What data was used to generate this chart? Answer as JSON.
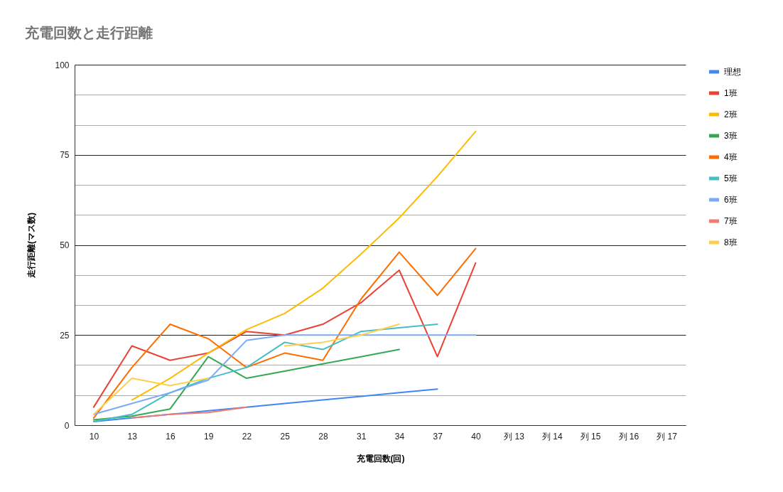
{
  "chart_data": {
    "type": "line",
    "title": "充電回数と走行距離",
    "xlabel": "充電回数(回)",
    "ylabel": "走行距離(マス数)",
    "categories": [
      "10",
      "13",
      "16",
      "19",
      "22",
      "25",
      "28",
      "31",
      "34",
      "37",
      "40",
      "列 13",
      "列 14",
      "列 15",
      "列 16",
      "列 17"
    ],
    "ylim": [
      0,
      100
    ],
    "yticks": [
      0,
      {
        "value": 8.33,
        "label": null
      },
      {
        "value": 16.67,
        "label": null
      },
      25,
      {
        "value": 33.33,
        "label": null
      },
      {
        "value": 41.67,
        "label": null
      },
      50,
      {
        "value": 58.33,
        "label": null
      },
      {
        "value": 66.67,
        "label": null
      },
      75,
      {
        "value": 83.33,
        "label": null
      },
      {
        "value": 91.67,
        "label": null
      },
      100
    ],
    "grid": "y",
    "legend": "right",
    "line_style": "solid",
    "series": [
      {
        "name": "理想",
        "color": "#4285f4",
        "values": [
          1,
          2,
          3,
          4,
          5,
          6,
          7,
          8,
          9,
          10,
          null,
          null,
          null,
          null,
          null,
          null
        ]
      },
      {
        "name": "1班",
        "color": "#ea4335",
        "values": [
          5,
          22,
          18,
          20,
          26,
          25,
          28,
          34,
          43,
          19,
          45,
          null,
          null,
          null,
          null,
          null
        ]
      },
      {
        "name": "2班",
        "color": "#fbbc04",
        "values": [
          null,
          7,
          13,
          20,
          26.5,
          31,
          38,
          47.5,
          57.5,
          69,
          81.5,
          null,
          null,
          null,
          null,
          null
        ]
      },
      {
        "name": "3班",
        "color": "#34a853",
        "values": [
          1.5,
          2.5,
          4.5,
          19,
          13,
          15,
          17,
          19,
          21,
          null,
          null,
          null,
          null,
          null,
          null,
          null
        ]
      },
      {
        "name": "4班",
        "color": "#ff6d01",
        "values": [
          2,
          16,
          28,
          24,
          16,
          20,
          18,
          35,
          48,
          36,
          49,
          null,
          null,
          null,
          null,
          null
        ]
      },
      {
        "name": "5班",
        "color": "#46bdc6",
        "values": [
          1,
          3,
          9,
          13,
          16,
          23,
          21,
          26,
          27,
          28,
          null,
          null,
          null,
          null,
          null,
          null
        ]
      },
      {
        "name": "6班",
        "color": "#7baaf7",
        "values": [
          3,
          6,
          9,
          12.5,
          23.5,
          25,
          25,
          25,
          25,
          25,
          25,
          null,
          null,
          null,
          null,
          null
        ]
      },
      {
        "name": "7班",
        "color": "#f07b72",
        "values": [
          null,
          2,
          3,
          3.5,
          5,
          null,
          null,
          null,
          null,
          null,
          null,
          null,
          null,
          null,
          null,
          null
        ]
      },
      {
        "name": "8班",
        "color": "#fcd04f",
        "values": [
          3,
          13,
          11,
          13,
          null,
          22,
          23,
          25,
          28,
          null,
          null,
          null,
          null,
          null,
          null,
          null
        ]
      }
    ]
  }
}
